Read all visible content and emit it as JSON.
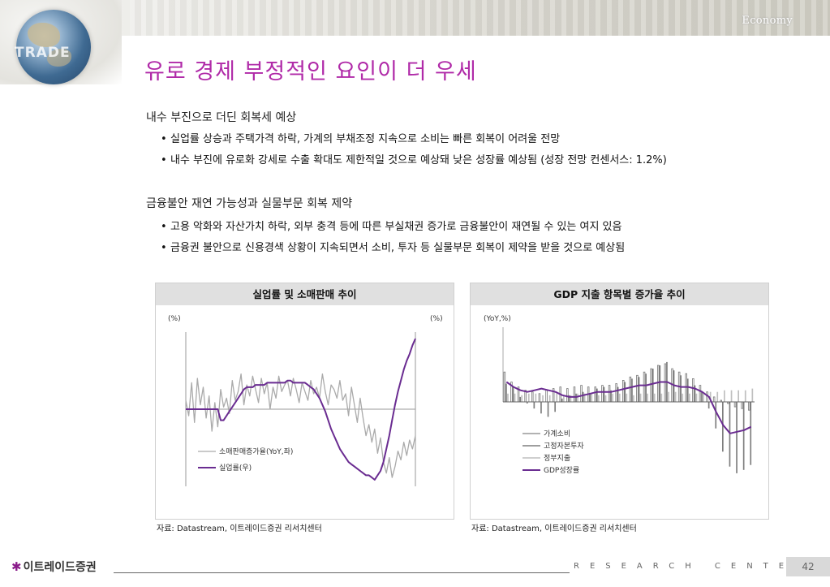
{
  "header": {
    "section": "Economy",
    "logo_text": "TRADE"
  },
  "title": "유로 경제 부정적인 요인이 더 우세",
  "sections": [
    {
      "heading": "내수 부진으로 더딘 회복세 예상",
      "bullets": [
        "실업률 상승과 주택가격 하락, 가계의 부채조정 지속으로 소비는 빠른 회복이 어려울 전망",
        "내수 부진에 유로화 강세로 수출 확대도 제한적일 것으로 예상돼 낮은 성장률 예상됨 (성장 전망 컨센서스: 1.2%)"
      ]
    },
    {
      "heading": "금융불안 재연 가능성과 실물부문 회복 제약",
      "bullets": [
        "고용 악화와 자산가치 하락, 외부 충격 등에 따른 부실채권 증가로 금융불안이 재연될 수 있는 여지 있음",
        "금융권 불안으로 신용경색 상황이 지속되면서 소비, 투자 등 실물부문 회복이 제약을 받을 것으로 예상됨"
      ]
    }
  ],
  "bullet_mark": "•",
  "chart_data": [
    {
      "type": "line",
      "title": "실업률 및 소매판매 추이",
      "left_unit": "(%)",
      "right_unit": "(%)",
      "series": [
        {
          "name": "소매판매증가율(YoY,좌)",
          "color": "#aaaaaa",
          "values": [
            0.4,
            -0.3,
            1.2,
            -0.6,
            1.4,
            0.2,
            1.0,
            -0.4,
            0.6,
            -1.0,
            0.3,
            -0.8,
            0.9,
            0.1,
            0.5,
            -0.2,
            1.3,
            0.4,
            0.8,
            1.6,
            0.2,
            1.1,
            0.6,
            1.5,
            0.9,
            0.3,
            1.4,
            0.7,
            1.2,
            0.0,
            1.0,
            0.5,
            1.5,
            0.8,
            1.1,
            1.3,
            0.6,
            1.4,
            0.9,
            0.3,
            1.2,
            0.8,
            0.4,
            1.3,
            0.7,
            1.0,
            0.5,
            1.6,
            0.8,
            0.2,
            1.1,
            0.9,
            0.5,
            1.3,
            0.4,
            0.7,
            -0.3,
            1.0,
            0.2,
            -0.6,
            0.5,
            -0.4,
            -1.2,
            -0.7,
            -1.5,
            -0.9,
            -2.0,
            -1.3,
            -2.4,
            -2.9,
            -2.2,
            -3.1,
            -2.6,
            -1.9,
            -2.3,
            -1.5,
            -2.1,
            -1.4,
            -1.8,
            -1.2
          ]
        },
        {
          "name": "실업률(우)",
          "color": "#6a2c91",
          "values": [
            0.0,
            0.0,
            0.0,
            0.0,
            0.0,
            0.0,
            0.0,
            0.0,
            0.0,
            0.0,
            0.0,
            0.0,
            -0.5,
            -0.5,
            -0.3,
            -0.1,
            0.1,
            0.3,
            0.5,
            0.7,
            0.9,
            1.0,
            1.0,
            1.0,
            1.1,
            1.1,
            1.1,
            1.1,
            1.2,
            1.2,
            1.2,
            1.2,
            1.2,
            1.2,
            1.2,
            1.3,
            1.3,
            1.2,
            1.2,
            1.2,
            1.2,
            1.2,
            1.1,
            1.0,
            0.9,
            0.7,
            0.5,
            0.2,
            -0.1,
            -0.5,
            -0.9,
            -1.2,
            -1.5,
            -1.8,
            -2.0,
            -2.2,
            -2.4,
            -2.5,
            -2.6,
            -2.7,
            -2.8,
            -2.9,
            -3.0,
            -3.0,
            -3.1,
            -3.2,
            -3.0,
            -2.8,
            -2.4,
            -1.8,
            -1.2,
            -0.5,
            0.2,
            0.8,
            1.3,
            1.8,
            2.2,
            2.5,
            2.9,
            3.2
          ]
        }
      ],
      "ylim": [
        -3.5,
        3.5
      ]
    },
    {
      "type": "bar",
      "title": "GDP 지출 항목별 증가율 추이",
      "unit": "(YoY,%)",
      "series": [
        {
          "name": "가계소비",
          "color": "#ffffff",
          "values": [
            1.8,
            1.2,
            0.9,
            0.7,
            0.6,
            0.5,
            0.7,
            0.8,
            0.9,
            0.8,
            0.9,
            1.0,
            0.9,
            0.9,
            1.0,
            1.0,
            1.1,
            1.3,
            1.5,
            1.6,
            1.8,
            2.0,
            2.2,
            2.3,
            2.0,
            1.8,
            1.7,
            1.4,
            1.0,
            0.6,
            0.3,
            0.1,
            -0.1,
            -0.3,
            -0.4,
            -0.5
          ]
        },
        {
          "name": "고정자본투자",
          "color": "#7f7f7f",
          "values": [
            1.1,
            0.9,
            0.3,
            -0.1,
            -0.4,
            -0.7,
            -0.9,
            -0.6,
            0.2,
            0.4,
            0.5,
            0.6,
            0.5,
            0.8,
            0.9,
            0.7,
            0.9,
            1.2,
            1.4,
            1.5,
            1.7,
            2.0,
            2.2,
            2.4,
            1.9,
            1.6,
            1.4,
            1.0,
            0.6,
            -0.4,
            -1.6,
            -3.0,
            -3.9,
            -4.3,
            -4.1,
            -3.8
          ]
        },
        {
          "name": "정부지출",
          "color": "#bfbfbf",
          "values": [
            0.5,
            0.5,
            0.4,
            0.5,
            0.5,
            0.4,
            0.4,
            0.5,
            0.4,
            0.4,
            0.5,
            0.5,
            0.5,
            0.4,
            0.4,
            0.5,
            0.5,
            0.5,
            0.4,
            0.5,
            0.5,
            0.5,
            0.5,
            0.6,
            0.6,
            0.5,
            0.5,
            0.5,
            0.5,
            0.6,
            0.6,
            0.7,
            0.7,
            0.7,
            0.7,
            0.8
          ]
        },
        {
          "name": "GDP성장률",
          "color": "#6a2c91",
          "line": true,
          "values": [
            1.2,
            0.9,
            0.7,
            0.6,
            0.7,
            0.8,
            0.7,
            0.6,
            0.4,
            0.3,
            0.3,
            0.4,
            0.5,
            0.6,
            0.6,
            0.6,
            0.7,
            0.8,
            0.9,
            1.0,
            1.0,
            1.1,
            1.2,
            1.2,
            1.0,
            0.9,
            0.9,
            0.8,
            0.6,
            0.3,
            -0.6,
            -1.4,
            -1.9,
            -1.8,
            -1.7,
            -1.5
          ]
        }
      ],
      "ylim": [
        -4.5,
        4.5
      ]
    }
  ],
  "sources": [
    "자료: Datastream, 이트레이드증권 리서치센터",
    "자료: Datastream, 이트레이드증권 리서치센터"
  ],
  "footer": {
    "logo_star": "✱",
    "company": "이트레이드증권",
    "center": "RESEARCH CENTER",
    "page": "42"
  }
}
